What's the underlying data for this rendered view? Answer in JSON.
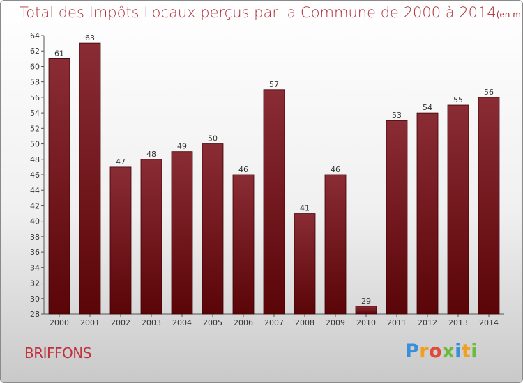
{
  "title": "Total des Impôts Locaux perçus par la Commune de 2000 à 2014",
  "title_unit": "(en milliers d'€)",
  "commune": "BRIFFONS",
  "brand": {
    "letters": [
      "P",
      "r",
      "o",
      "x",
      "i",
      "t",
      "i"
    ],
    "colors": [
      "#3a8fd8",
      "#f0a020",
      "#e04a3a",
      "#6cbb3c",
      "#3a8fd8",
      "#f0a020",
      "#6cbb3c"
    ]
  },
  "colors": {
    "bar_dark": "#5a0508",
    "bar_light": "#8a2c34",
    "bar_edge": "#3f0205",
    "title": "#b0303a",
    "grid": "#6c6c6c"
  },
  "chart_data": {
    "type": "bar",
    "title": "Total des Impôts Locaux perçus par la Commune de 2000 à 2014",
    "xlabel": "",
    "ylabel": "",
    "categories": [
      "2000",
      "2001",
      "2002",
      "2003",
      "2004",
      "2005",
      "2006",
      "2007",
      "2008",
      "2009",
      "2010",
      "2011",
      "2012",
      "2013",
      "2014"
    ],
    "values": [
      61,
      63,
      47,
      48,
      49,
      50,
      46,
      57,
      41,
      46,
      29,
      53,
      54,
      55,
      56
    ],
    "ylim": [
      28,
      64
    ],
    "yticks": [
      28,
      30,
      32,
      34,
      36,
      38,
      40,
      42,
      44,
      46,
      48,
      50,
      52,
      54,
      56,
      58,
      60,
      62,
      64
    ],
    "grid": false,
    "data_labels": true
  }
}
